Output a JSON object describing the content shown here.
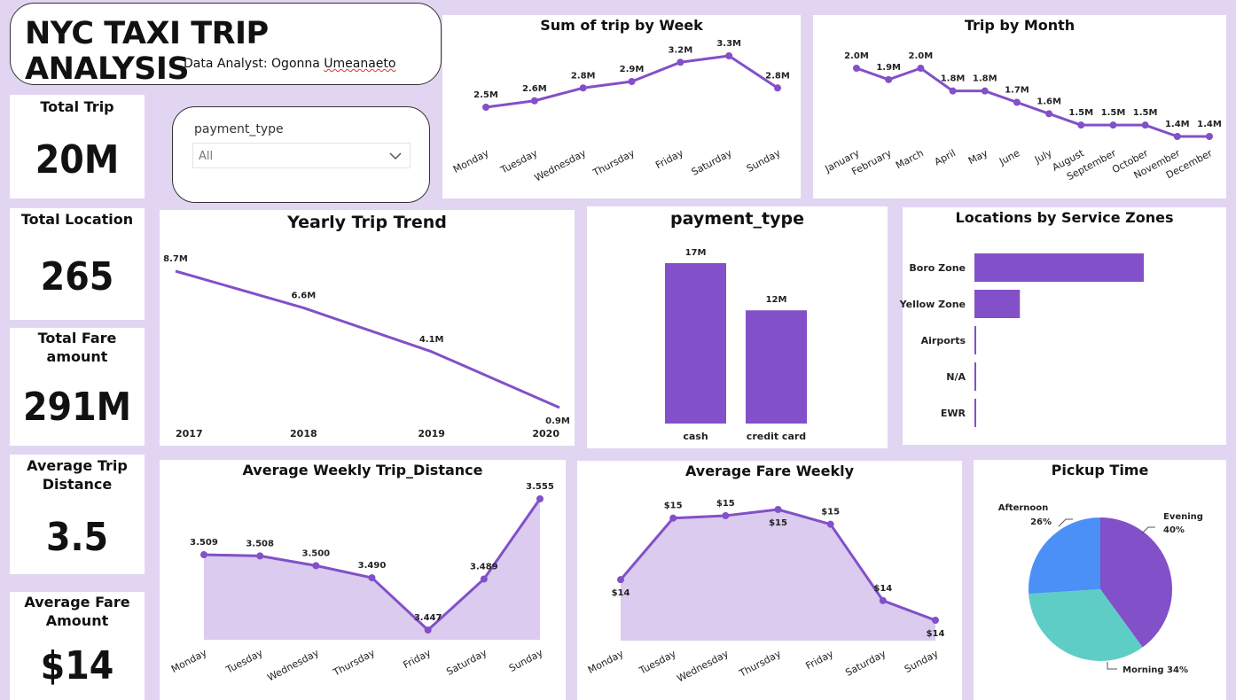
{
  "header": {
    "title": "NYC TAXI TRIP ANALYSIS",
    "subtitle_prefix": "Data Analyst: Ogonna ",
    "subtitle_name": "Umeanaeto"
  },
  "kpis": {
    "total_trip": {
      "label": "Total Trip",
      "value": "20M"
    },
    "total_location": {
      "label": "Total Location",
      "value": "265"
    },
    "total_fare": {
      "label_line1": "Total Fare",
      "label_line2": "amount",
      "value": "291M"
    },
    "avg_trip_distance": {
      "label_line1": "Average Trip",
      "label_line2": "Distance",
      "value": "3.5"
    },
    "avg_fare_amount": {
      "label_line1": "Average Fare",
      "label_line2": "Amount",
      "value": "$14"
    }
  },
  "slicer": {
    "label": "payment_type",
    "value": "All",
    "icon": "chevron-down-icon"
  },
  "colors": {
    "accent": "#8250c8",
    "area_fill": "#dacbef",
    "background": "#e2d5f2",
    "pie_afternoon": "#4a90f7",
    "pie_morning": "#5ecdc6",
    "pie_evening": "#8250c8"
  },
  "chart_data": [
    {
      "id": "weekly",
      "type": "line",
      "title": "Sum of trip by Week",
      "categories": [
        "Monday",
        "Tuesday",
        "Wednesday",
        "Thursday",
        "Friday",
        "Saturday",
        "Sunday"
      ],
      "values": [
        2.5,
        2.6,
        2.8,
        2.9,
        3.2,
        3.3,
        2.8
      ],
      "labels": [
        "2.5M",
        "2.6M",
        "2.8M",
        "2.9M",
        "3.2M",
        "3.3M",
        "2.8M"
      ]
    },
    {
      "id": "monthly",
      "type": "line",
      "title": "Trip by Month",
      "categories": [
        "January",
        "February",
        "March",
        "April",
        "May",
        "June",
        "July",
        "August",
        "September",
        "October",
        "November",
        "December"
      ],
      "values": [
        2.0,
        1.9,
        2.0,
        1.8,
        1.8,
        1.7,
        1.6,
        1.5,
        1.5,
        1.5,
        1.4,
        1.4
      ],
      "labels": [
        "2.0M",
        "1.9M",
        "2.0M",
        "1.8M",
        "1.8M",
        "1.7M",
        "1.6M",
        "1.5M",
        "1.5M",
        "1.5M",
        "1.4M",
        "1.4M"
      ]
    },
    {
      "id": "yearly",
      "type": "line",
      "title": "Yearly Trip Trend",
      "categories": [
        "2017",
        "2018",
        "2019",
        "2020"
      ],
      "values": [
        8.7,
        6.6,
        4.1,
        0.9
      ],
      "labels": [
        "8.7M",
        "6.6M",
        "4.1M",
        "0.9M"
      ]
    },
    {
      "id": "payment",
      "type": "bar",
      "title": "payment_type",
      "categories": [
        "cash",
        "credit card"
      ],
      "values": [
        17,
        12
      ],
      "labels": [
        "17M",
        "12M"
      ]
    },
    {
      "id": "zones",
      "type": "bar",
      "orientation": "horizontal",
      "title": "Locations by Service Zones",
      "categories": [
        "Boro Zone",
        "Yellow Zone",
        "Airports",
        "N/A",
        "EWR"
      ],
      "values": [
        205,
        55,
        2,
        2,
        1
      ]
    },
    {
      "id": "distance",
      "type": "area",
      "title": "Average Weekly Trip_Distance",
      "categories": [
        "Monday",
        "Tuesday",
        "Wednesday",
        "Thursday",
        "Friday",
        "Saturday",
        "Sunday"
      ],
      "values": [
        3.509,
        3.508,
        3.5,
        3.49,
        3.447,
        3.489,
        3.555
      ],
      "labels": [
        "3.509",
        "3.508",
        "3.500",
        "3.490",
        "3.447",
        "3.489",
        "3.555"
      ]
    },
    {
      "id": "fare",
      "type": "area",
      "title": "Average Fare Weekly",
      "categories": [
        "Monday",
        "Tuesday",
        "Wednesday",
        "Thursday",
        "Friday",
        "Saturday",
        "Sunday"
      ],
      "values": [
        14.45,
        14.95,
        14.97,
        15.02,
        14.9,
        14.28,
        14.12
      ],
      "labels": [
        "$14",
        "$15",
        "$15",
        "$15",
        "$15",
        "$14",
        "$14"
      ]
    },
    {
      "id": "pickup",
      "type": "pie",
      "title": "Pickup Time",
      "categories": [
        "Evening",
        "Morning",
        "Afternoon"
      ],
      "values": [
        40,
        34,
        26
      ],
      "labels": [
        "40%",
        "34%",
        "26%"
      ],
      "label_text": [
        "Evening",
        "Morning 34%",
        "Afternoon"
      ]
    }
  ]
}
